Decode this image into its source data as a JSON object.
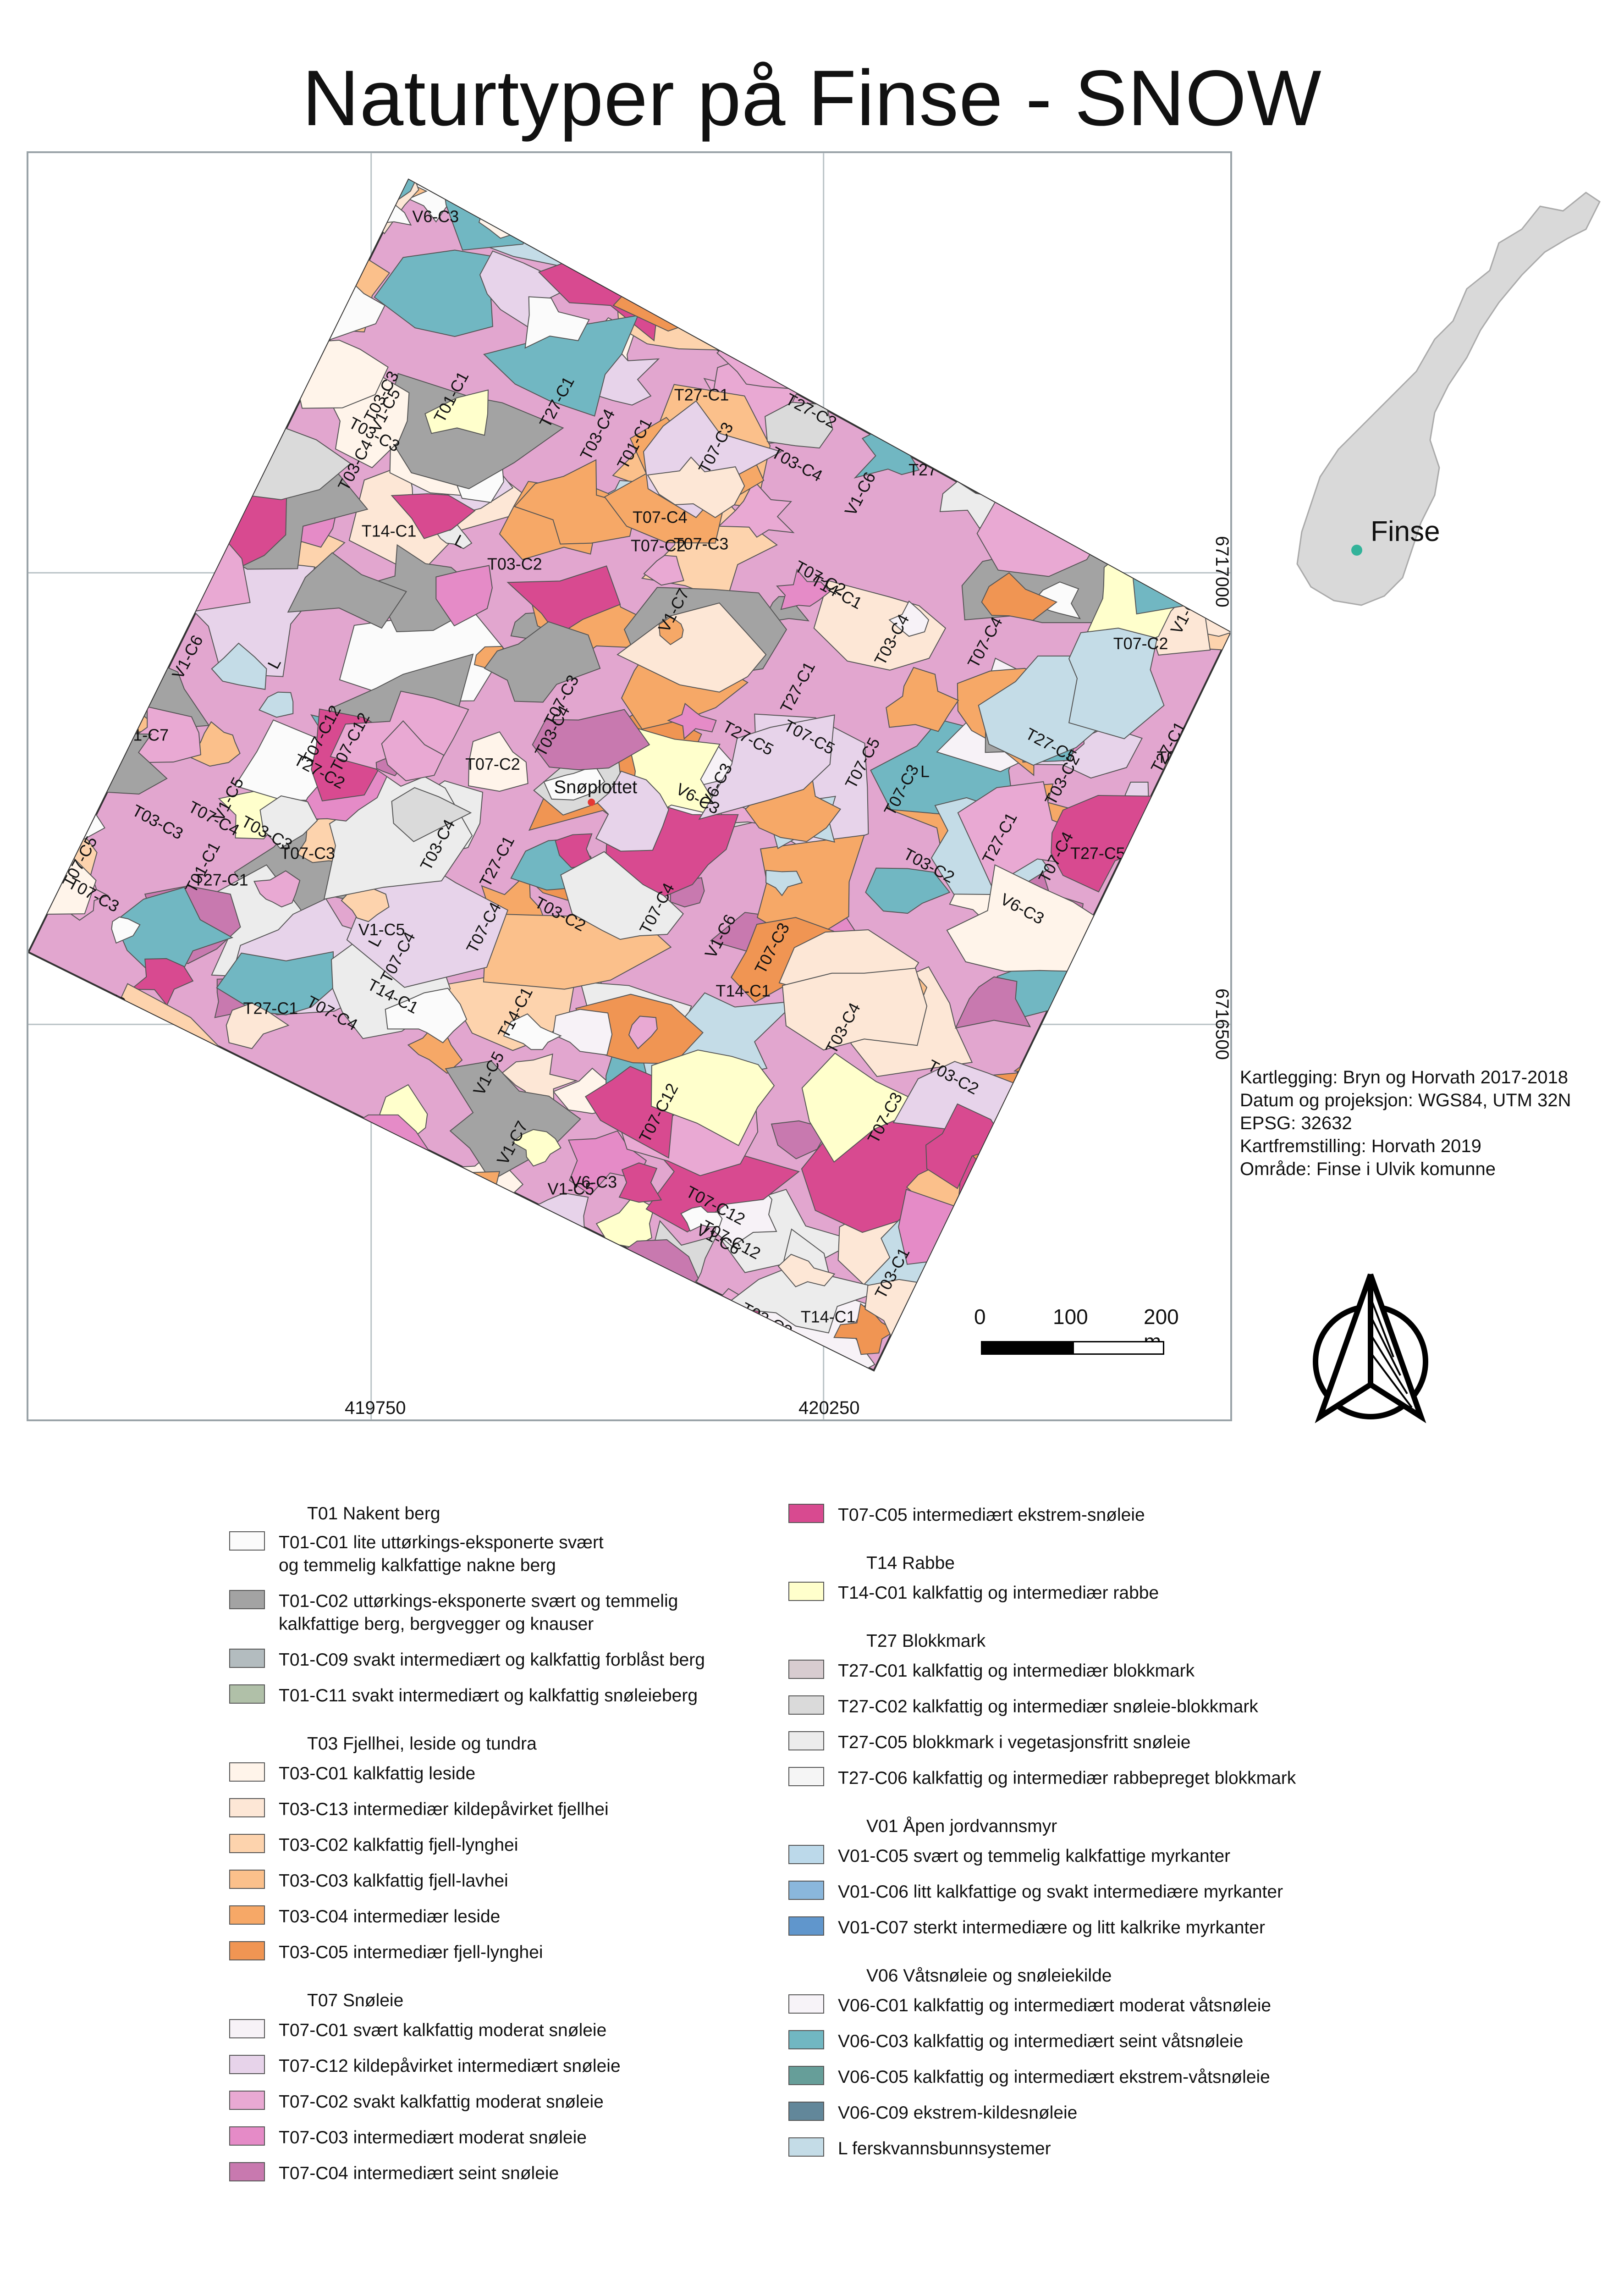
{
  "title": "Naturtyper på Finse - SNOW",
  "colors": {
    "T01-C01": "#fbfbfb",
    "T01-C02": "#a3a3a3",
    "T01-C09": "#b3bcbf",
    "T01-C11": "#b0c0a8",
    "T03-C01": "#fff4ea",
    "T03-C13": "#fde7d6",
    "T03-C02": "#fdd3ad",
    "T03-C03": "#fbc08b",
    "T03-C04": "#f6a867",
    "T03-C05": "#f09553",
    "T07-C01": "#f7f2f7",
    "T07-C12": "#e7d3ea",
    "T07-C02": "#e9a9d3",
    "T07-C03": "#e58bc7",
    "T07-C04": "#c879af",
    "T07-C05": "#d84a90",
    "T14-C01": "#ffffcc",
    "T27-C01": "#d8ccd0",
    "T27-C02": "#dadada",
    "T27-C05": "#ececec",
    "T27-C06": "#f5f5f5",
    "V01-C05": "#bcd9ea",
    "V01-C06": "#8ab7dc",
    "V01-C07": "#6096cc",
    "V06-C01": "#f7f3f8",
    "V06-C03": "#71b7c2",
    "V06-C05": "#669e99",
    "V06-C09": "#62879a",
    "L": "#c4dce7"
  },
  "map": {
    "coords": {
      "x_left": "419750",
      "x_right": "420250",
      "y_top": "6717000",
      "y_bottom": "6716500"
    },
    "place_label": "Snøplottet",
    "unit_labels": [
      "T07-C3",
      "T03-C4",
      "T07-C4",
      "T03-C3",
      "T07-C5",
      "T03-C2",
      "T14-C1",
      "T27-C1",
      "T27-C2",
      "T27-C5",
      "T03-C1",
      "V6-C3",
      "V1-C6",
      "V1-C5",
      "V1-C7",
      "T07-C2",
      "T01-C1",
      "T07-C12",
      "T03-C13",
      "L"
    ],
    "inset_label": "Finse"
  },
  "metadata_lines": [
    "Kartlegging: Bryn og Horvath 2017-2018",
    "Datum og projeksjon: WGS84, UTM 32N",
    "EPSG: 32632",
    "Kartfremstilling: Horvath 2019",
    "Område: Finse i Ulvik komunne"
  ],
  "scale": {
    "labels": [
      "0",
      "100",
      "200 m"
    ]
  },
  "legend": {
    "left": [
      {
        "heading": "T01 Nakent berg"
      },
      {
        "code": "T01-C01",
        "desc": "lite uttørkings-eksponerte svært\nog temmelig kalkfattige nakne berg"
      },
      {
        "code": "T01-C02",
        "desc": "uttørkings-eksponerte svært og temmelig\nkalkfattige berg, bergvegger og knauser"
      },
      {
        "code": "T01-C09",
        "desc": "svakt intermediært og kalkfattig forblåst berg"
      },
      {
        "code": "T01-C11",
        "desc": "svakt intermediært og kalkfattig snøleieberg"
      },
      {
        "heading": "T03 Fjellhei, leside og tundra"
      },
      {
        "code": "T03-C01",
        "desc": "kalkfattig leside"
      },
      {
        "code": "T03-C13",
        "desc": "intermediær kildepåvirket fjellhei"
      },
      {
        "code": "T03-C02",
        "desc": "kalkfattig fjell-lynghei"
      },
      {
        "code": "T03-C03",
        "desc": "kalkfattig fjell-lavhei"
      },
      {
        "code": "T03-C04",
        "desc": "intermediær leside"
      },
      {
        "code": "T03-C05",
        "desc": "intermediær fjell-lynghei"
      },
      {
        "heading": "T07 Snøleie"
      },
      {
        "code": "T07-C01",
        "desc": "svært kalkfattig moderat snøleie"
      },
      {
        "code": "T07-C12",
        "desc": "kildepåvirket intermediært snøleie"
      },
      {
        "code": "T07-C02",
        "desc": "svakt kalkfattig moderat snøleie"
      },
      {
        "code": "T07-C03",
        "desc": "intermediært moderat snøleie"
      },
      {
        "code": "T07-C04",
        "desc": "intermediært seint snøleie"
      }
    ],
    "right": [
      {
        "code": "T07-C05",
        "desc": "intermediært ekstrem-snøleie"
      },
      {
        "heading": "T14 Rabbe"
      },
      {
        "code": "T14-C01",
        "desc": "kalkfattig og intermediær rabbe"
      },
      {
        "heading": "T27 Blokkmark"
      },
      {
        "code": "T27-C01",
        "desc": "kalkfattig og intermediær blokkmark"
      },
      {
        "code": "T27-C02",
        "desc": "kalkfattig og intermediær snøleie-blokkmark"
      },
      {
        "code": "T27-C05",
        "desc": "blokkmark i vegetasjonsfritt snøleie"
      },
      {
        "code": "T27-C06",
        "desc": "kalkfattig og intermediær rabbepreget blokkmark"
      },
      {
        "heading": "V01 Åpen jordvannsmyr"
      },
      {
        "code": "V01-C05",
        "desc": "svært og temmelig kalkfattige myrkanter"
      },
      {
        "code": "V01-C06",
        "desc": "litt kalkfattige og svakt intermediære myrkanter"
      },
      {
        "code": "V01-C07",
        "desc": "sterkt intermediære og litt kalkrike myrkanter"
      },
      {
        "heading": "V06 Våtsnøleie og snøleiekilde"
      },
      {
        "code": "V06-C01",
        "desc": "kalkfattig og intermediært moderat våtsnøleie"
      },
      {
        "code": "V06-C03",
        "desc": "kalkfattig og intermediært seint våtsnøleie"
      },
      {
        "code": "V06-C05",
        "desc": "kalkfattig og intermediært ekstrem-våtsnøleie"
      },
      {
        "code": "V06-C09",
        "desc": "ekstrem-kildesnøleie"
      },
      {
        "code": "L",
        "desc": "ferskvannsbunnsystemer"
      }
    ]
  }
}
